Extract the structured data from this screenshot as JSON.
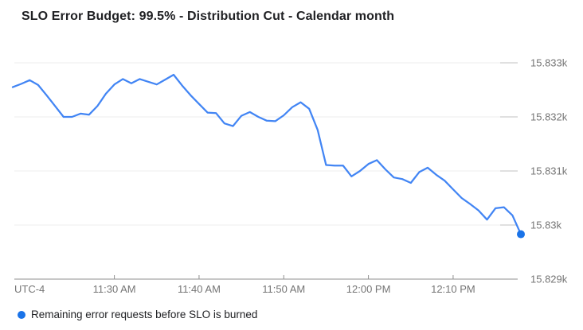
{
  "title": "SLO Error Budget: 99.5% - Distribution Cut - Calendar month",
  "legend": {
    "items": [
      {
        "label": "Remaining error requests before SLO is burned",
        "marker_color": "#1a73e8"
      }
    ]
  },
  "colors": {
    "line_blue": "#4285f4",
    "dot_blue": "#1a73e8",
    "grid_light": "#ececec",
    "grid_tick_dark": "#c2c2c2",
    "axis_gray": "#8f8f8f",
    "text_primary": "#202124",
    "text_secondary": "#757575"
  },
  "chart_data": {
    "type": "line",
    "title": "SLO Error Budget: 99.5% - Distribution Cut - Calendar month",
    "xlabel": "",
    "ylabel": "",
    "timezone_label": "UTC-4",
    "grid": "horizontal",
    "legend_position": "bottom-left",
    "x_tick_labels": [
      "11:30 AM",
      "11:40 AM",
      "11:50 AM",
      "12:00 PM",
      "12:10 PM"
    ],
    "x_tick_point_index": [
      12,
      22,
      32,
      42,
      52
    ],
    "minutes_per_point": 1,
    "y_tick_labels": [
      "15.833k",
      "15.832k",
      "15.831k",
      "15.83k",
      "15.829k"
    ],
    "y_tick_values": [
      15833,
      15832,
      15831,
      15830,
      15829
    ],
    "ylim": [
      15829,
      15833
    ],
    "series": [
      {
        "name": "Remaining error requests before SLO is burned",
        "color": "#4285f4",
        "end_marker_color": "#1a73e8",
        "values": [
          15832.55,
          15832.61,
          15832.68,
          15832.59,
          15832.4,
          15832.2,
          15832.0,
          15832.0,
          15832.06,
          15832.04,
          15832.2,
          15832.43,
          15832.6,
          15832.7,
          15832.62,
          15832.7,
          15832.65,
          15832.6,
          15832.69,
          15832.78,
          15832.58,
          15832.4,
          15832.24,
          15832.08,
          15832.07,
          15831.88,
          15831.83,
          15832.02,
          15832.09,
          15832.0,
          15831.93,
          15831.92,
          15832.03,
          15832.18,
          15832.27,
          15832.15,
          15831.76,
          15831.11,
          15831.1,
          15831.1,
          15830.9,
          15831.0,
          15831.13,
          15831.2,
          15831.03,
          15830.88,
          15830.85,
          15830.78,
          15830.98,
          15831.06,
          15830.93,
          15830.82,
          15830.66,
          15830.5,
          15830.39,
          15830.27,
          15830.1,
          15830.31,
          15830.33,
          15830.18,
          15829.83
        ]
      }
    ]
  }
}
